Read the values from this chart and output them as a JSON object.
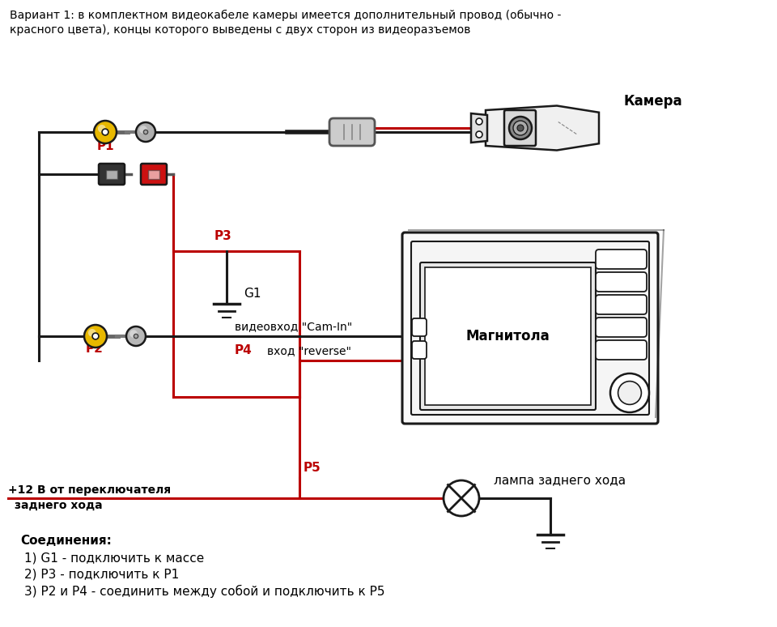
{
  "title_line1": "Вариант 1: в комплектном видеокабеле камеры имеется дополнительный провод (обычно -",
  "title_line2": "красного цвета), концы которого выведены с двух сторон из видеоразъемов",
  "connections_title": "Соединения:",
  "connection1": "1) G1 - подключить к массе",
  "connection2": "2) Р3 - подключить к Р1",
  "connection3": "3) Р2 и Р4 - соединить между собой и подключить к Р5",
  "label_camera": "Камера",
  "label_magnitola": "Магнитола",
  "label_cam_in": "видеовход \"Cam-In\"",
  "label_reverse": "вход \"reverse\"",
  "label_lamp": "лампа заднего хода",
  "label_plus12_1": "+12 В от переключателя",
  "label_plus12_2": "заднего хода",
  "label_P1": "P1",
  "label_P2": "P2",
  "label_P3": "P3",
  "label_P4": "P4",
  "label_P5": "P5",
  "label_G1": "G1",
  "bg_color": "#ffffff",
  "line_black": "#1a1a1a",
  "line_red": "#bb0000",
  "connector_yellow": "#e8b800",
  "connector_red": "#cc1111",
  "connector_black": "#333333",
  "connector_gray": "#999999",
  "text_red": "#bb0000",
  "outline_color": "#1a1a1a"
}
